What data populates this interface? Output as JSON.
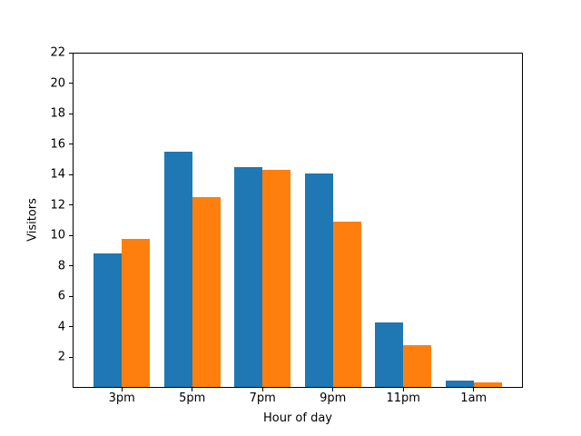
{
  "chart_data": {
    "type": "bar",
    "title": "",
    "xlabel": "Hour of day",
    "ylabel": "Visitors",
    "categories": [
      "3pm",
      "5pm",
      "7pm",
      "9pm",
      "11pm",
      "1am"
    ],
    "series": [
      {
        "name": "blue",
        "color": "#1f77b4",
        "values": [
          8.8,
          15.5,
          14.5,
          14.1,
          4.3,
          0.45
        ]
      },
      {
        "name": "orange",
        "color": "#ff7f0e",
        "values": [
          9.8,
          12.5,
          14.3,
          10.9,
          2.8,
          0.33
        ]
      }
    ],
    "ylim": [
      0,
      22
    ],
    "y_ticks": [
      2,
      4,
      6,
      8,
      10,
      12,
      14,
      16,
      18,
      20,
      22
    ],
    "grid": false,
    "legend": "none",
    "bar_width_fraction": 0.4,
    "axis_color": "#000000",
    "background_color": "#ffffff"
  }
}
